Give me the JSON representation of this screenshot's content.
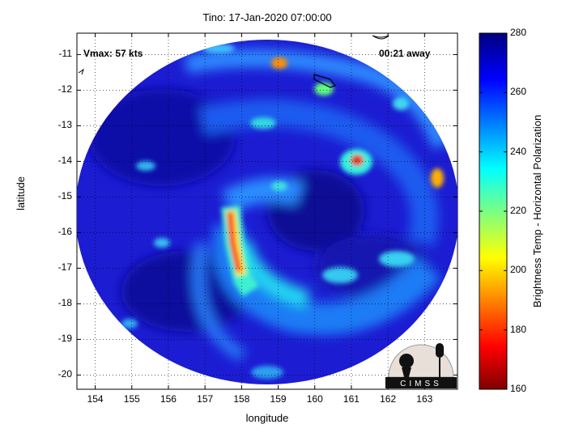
{
  "title": "Tino: 17-Jan-2020 07:00:00",
  "xlabel": "longitude",
  "ylabel": "latitude",
  "colorbar_label": "Brightness Temp - Horizontal Polarization",
  "vmax_text": "Vmax: 57 kts",
  "away_text": "00:21 away",
  "logo_text": "CIMSS",
  "x_ticks": [
    "154",
    "155",
    "156",
    "157",
    "158",
    "159",
    "160",
    "161",
    "162",
    "163"
  ],
  "y_ticks": [
    "-11",
    "-12",
    "-13",
    "-14",
    "-15",
    "-16",
    "-17",
    "-18",
    "-19",
    "-20"
  ],
  "cb_ticks": [
    "280",
    "260",
    "240",
    "220",
    "200",
    "180",
    "160"
  ],
  "colors": {
    "background_cold": "#1a1ac8",
    "warm": "#ff2000"
  },
  "map": {
    "lon_range": [
      153.5,
      163.9
    ],
    "lat_range": [
      -20.4,
      -10.4
    ],
    "colorbar_range": [
      160,
      280
    ],
    "storm_center": {
      "lon": 159.5,
      "lat": -15.3
    }
  }
}
